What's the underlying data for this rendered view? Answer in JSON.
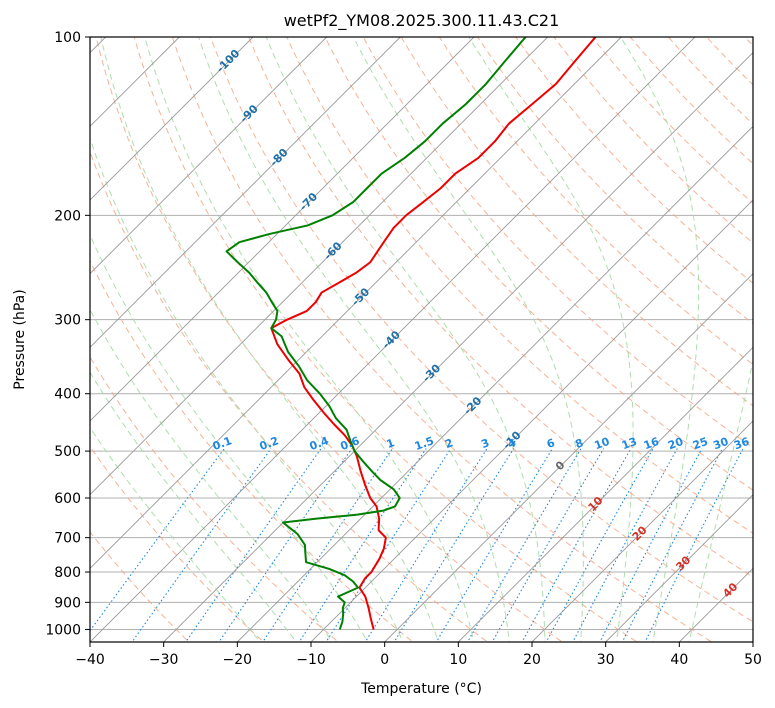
{
  "chart_data": {
    "type": "line",
    "title": "wetPf2_YM08.2025.300.11.43.C21",
    "xlabel": "Temperature (°C)",
    "ylabel": "Pressure (hPa)",
    "xlim": [
      -40,
      50
    ],
    "ylim": [
      1050,
      100
    ],
    "y_scale": "log",
    "x_ticks": [
      "−40",
      "−30",
      "−20",
      "−10",
      "0",
      "10",
      "20",
      "30",
      "40",
      "50"
    ],
    "y_ticks": [
      "100",
      "200",
      "300",
      "400",
      "500",
      "600",
      "700",
      "800",
      "900",
      "1000"
    ],
    "grid": true,
    "skew": true,
    "colors": {
      "temperature": "#ee0000",
      "dewpoint": "#008000",
      "dry_adiabat": "#f4a582",
      "moist_adiabat": "#a6d9a6",
      "mixing_ratio": "#1e88e5",
      "isotherm": "#999999",
      "isotherm_label": "#1f6fa8",
      "dry_label": "#d73027"
    },
    "series": [
      {
        "key": "temperature",
        "points": [
          [
            -3.2,
            1000
          ],
          [
            -5.0,
            960
          ],
          [
            -6.8,
            920
          ],
          [
            -8.8,
            880
          ],
          [
            -10.8,
            850
          ],
          [
            -11.3,
            820
          ],
          [
            -11.3,
            800
          ],
          [
            -12.0,
            760
          ],
          [
            -12.8,
            730
          ],
          [
            -14.0,
            700
          ],
          [
            -16.0,
            680
          ],
          [
            -17.5,
            650
          ],
          [
            -19.5,
            620
          ],
          [
            -21.5,
            600
          ],
          [
            -24.0,
            570
          ],
          [
            -26.5,
            540
          ],
          [
            -29.0,
            510
          ],
          [
            -31.0,
            490
          ],
          [
            -33.5,
            470
          ],
          [
            -36.5,
            450
          ],
          [
            -39.5,
            430
          ],
          [
            -42.5,
            410
          ],
          [
            -45.5,
            390
          ],
          [
            -48.0,
            370
          ],
          [
            -51.5,
            350
          ],
          [
            -55.0,
            330
          ],
          [
            -58.0,
            310
          ],
          [
            -57.0,
            300
          ],
          [
            -55.5,
            290
          ],
          [
            -55.5,
            280
          ],
          [
            -56.0,
            270
          ],
          [
            -55.0,
            260
          ],
          [
            -54.0,
            250
          ],
          [
            -53.5,
            240
          ],
          [
            -54.0,
            230
          ],
          [
            -54.5,
            220
          ],
          [
            -55.0,
            210
          ],
          [
            -55.0,
            200
          ],
          [
            -54.5,
            190
          ],
          [
            -54.0,
            180
          ],
          [
            -54.0,
            170
          ],
          [
            -53.0,
            160
          ],
          [
            -53.0,
            150
          ],
          [
            -53.5,
            140
          ],
          [
            -53.0,
            130
          ],
          [
            -52.5,
            120
          ],
          [
            -53.0,
            110
          ],
          [
            -53.5,
            100
          ]
        ]
      },
      {
        "key": "dewpoint",
        "points": [
          [
            -7.8,
            1000
          ],
          [
            -8.5,
            970
          ],
          [
            -9.5,
            940
          ],
          [
            -10.3,
            920
          ],
          [
            -10.8,
            900
          ],
          [
            -12.5,
            880
          ],
          [
            -11.5,
            860
          ],
          [
            -11.0,
            850
          ],
          [
            -12.5,
            830
          ],
          [
            -14.5,
            810
          ],
          [
            -17.5,
            790
          ],
          [
            -21.5,
            770
          ],
          [
            -23.0,
            740
          ],
          [
            -24.0,
            720
          ],
          [
            -26.5,
            690
          ],
          [
            -30.0,
            660
          ],
          [
            -26.0,
            650
          ],
          [
            -21.0,
            640
          ],
          [
            -18.0,
            630
          ],
          [
            -17.0,
            620
          ],
          [
            -17.5,
            600
          ],
          [
            -19.5,
            580
          ],
          [
            -22.5,
            560
          ],
          [
            -25.0,
            540
          ],
          [
            -27.5,
            520
          ],
          [
            -30.0,
            500
          ],
          [
            -32.0,
            480
          ],
          [
            -34.0,
            460
          ],
          [
            -37.0,
            440
          ],
          [
            -39.5,
            420
          ],
          [
            -42.5,
            400
          ],
          [
            -46.0,
            380
          ],
          [
            -49.0,
            360
          ],
          [
            -52.5,
            340
          ],
          [
            -55.5,
            320
          ],
          [
            -58.0,
            310
          ],
          [
            -58.5,
            300
          ],
          [
            -59.5,
            290
          ],
          [
            -61.5,
            280
          ],
          [
            -63.5,
            270
          ],
          [
            -66.0,
            260
          ],
          [
            -68.5,
            250
          ],
          [
            -71.5,
            240
          ],
          [
            -74.5,
            230
          ],
          [
            -74.0,
            222
          ],
          [
            -71.0,
            215
          ],
          [
            -67.0,
            208
          ],
          [
            -65.0,
            200
          ],
          [
            -64.0,
            190
          ],
          [
            -64.0,
            180
          ],
          [
            -64.0,
            170
          ],
          [
            -63.0,
            160
          ],
          [
            -62.5,
            150
          ],
          [
            -62.5,
            140
          ],
          [
            -62.0,
            130
          ],
          [
            -62.0,
            120
          ],
          [
            -62.5,
            110
          ],
          [
            -63.0,
            100
          ]
        ]
      }
    ],
    "isotherm_labels": [
      "-100",
      "-90",
      "-80",
      "-70",
      "-60",
      "-50",
      "-40",
      "-30",
      "-20",
      "-10",
      "0",
      "10",
      "20",
      "30",
      "40"
    ],
    "isotherm_label_values": [
      -100,
      -90,
      -80,
      -70,
      -60,
      -50,
      -40,
      -30,
      -20,
      -10,
      0,
      10,
      20,
      30,
      40
    ],
    "isotherm_label_pressures": [
      110,
      135,
      160,
      190,
      230,
      275,
      325,
      370,
      420,
      480,
      530,
      615,
      690,
      775,
      860
    ],
    "mixing_ratio_labels": [
      "0.1",
      "0.2",
      "0.4",
      "0.6",
      "1",
      "1.5",
      "2",
      "3",
      "4",
      "6",
      "8",
      "10",
      "13",
      "16",
      "20",
      "25",
      "30",
      "36"
    ],
    "mixing_ratio_values": [
      0.1,
      0.2,
      0.4,
      0.6,
      1,
      1.5,
      2,
      3,
      4,
      6,
      8,
      10,
      13,
      16,
      20,
      25,
      30,
      36
    ]
  }
}
